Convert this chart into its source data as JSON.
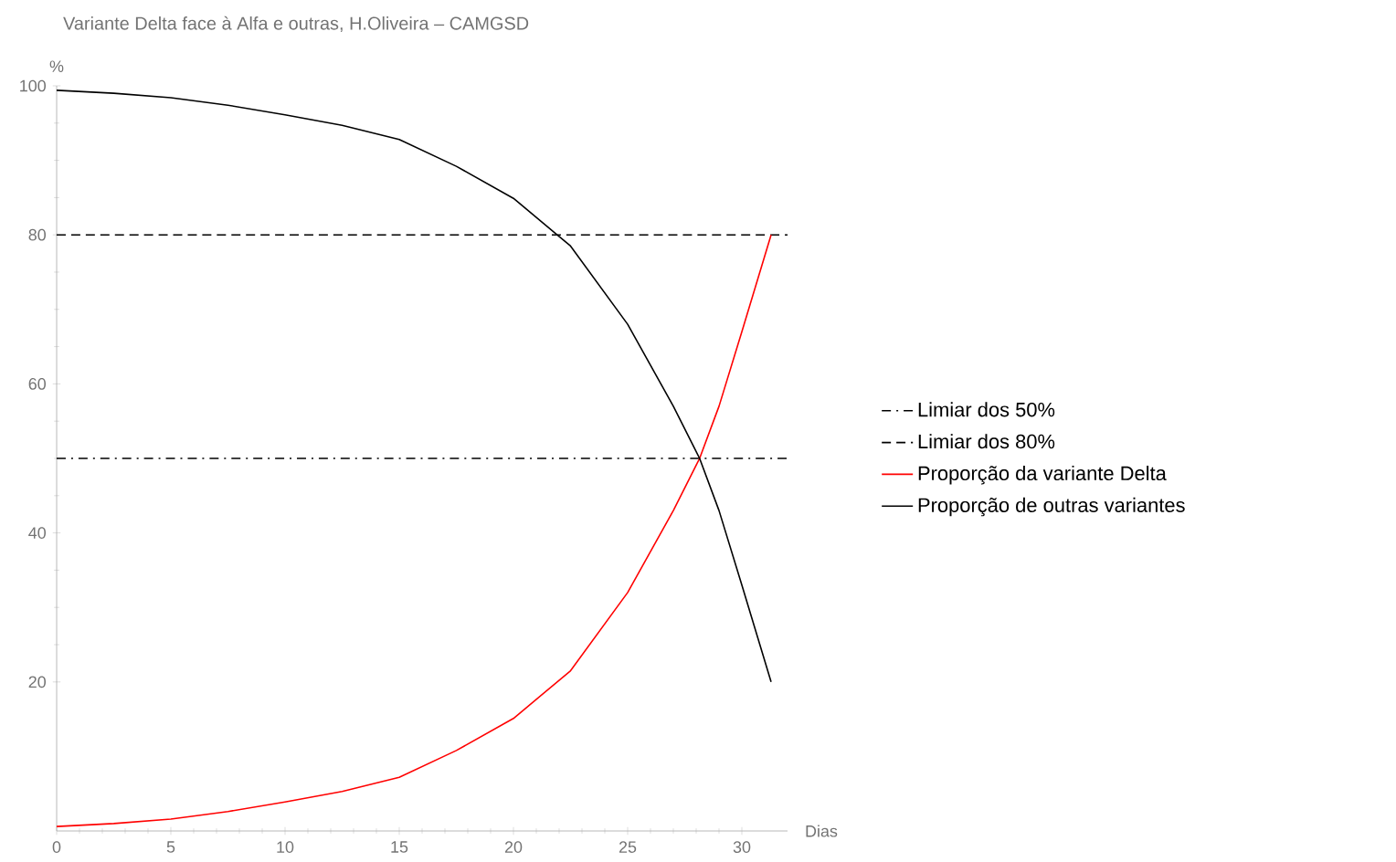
{
  "chart_data": {
    "type": "line",
    "title": "Variante Delta face à Alfa e outras, H.Oliveira – CAMGSD",
    "xlabel": "Dias",
    "ylabel": "%",
    "xlim": [
      0,
      32
    ],
    "ylim": [
      0,
      100
    ],
    "xticks": [
      0,
      5,
      10,
      15,
      20,
      25,
      30
    ],
    "yticks": [
      20,
      40,
      60,
      80,
      100
    ],
    "legend": "right",
    "grid": false,
    "marker": "none",
    "ref_lines": [
      {
        "axis": "y",
        "value": 50,
        "label": "Limiar dos 50%",
        "color": "#000000",
        "line_style": "dashdot"
      },
      {
        "axis": "y",
        "value": 80,
        "label": "Limiar dos 80%",
        "color": "#000000",
        "line_style": "dashed"
      }
    ],
    "series": [
      {
        "name": "Proporção da variante Delta",
        "color": "#ff0000",
        "line_style": "solid",
        "x": [
          0,
          2.5,
          5,
          7.5,
          10,
          12.5,
          15,
          17.5,
          20,
          22.5,
          25,
          27,
          28.15,
          29,
          30,
          31.28
        ],
        "values": [
          0.6,
          1.0,
          1.6,
          2.6,
          3.9,
          5.3,
          7.2,
          10.8,
          15.1,
          21.5,
          32,
          43,
          50,
          57,
          67,
          80
        ]
      },
      {
        "name": "Proporção de outras variantes",
        "color": "#000000",
        "line_style": "solid",
        "x": [
          0,
          2.5,
          5,
          7.5,
          10,
          12.5,
          15,
          17.5,
          20,
          22.5,
          25,
          27,
          28.15,
          29,
          30,
          31.28
        ],
        "values": [
          99.4,
          99.0,
          98.4,
          97.4,
          96.1,
          94.7,
          92.8,
          89.2,
          84.9,
          78.5,
          68,
          57,
          50,
          43,
          33,
          20
        ]
      }
    ]
  }
}
